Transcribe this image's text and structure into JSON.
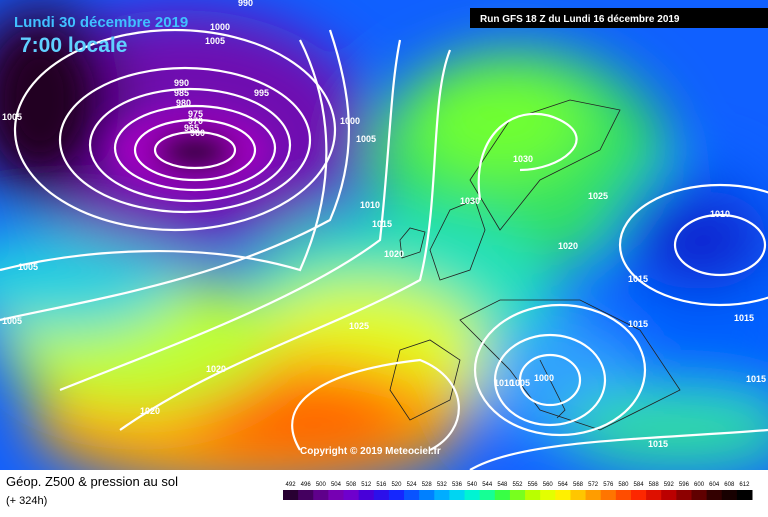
{
  "header": {
    "date": "Lundi 30 décembre 2019",
    "time": "7:00 locale",
    "run": "Run GFS 18 Z du Lundi 16 décembre 2019",
    "copyright": "Copyright © 2019 Meteociel.fr"
  },
  "legend": {
    "title": "Géop. Z500 & pression au sol",
    "lead": "(+ 324h)",
    "scale": [
      492,
      496,
      500,
      504,
      508,
      512,
      516,
      520,
      524,
      528,
      532,
      536,
      540,
      544,
      548,
      552,
      556,
      560,
      564,
      568,
      572,
      576,
      580,
      584,
      588,
      592,
      596,
      600,
      604,
      608,
      612
    ]
  },
  "isobar_labels": [
    990,
    1000,
    1005,
    990,
    985,
    980,
    975,
    970,
    965,
    960,
    995,
    1005,
    1000,
    1005,
    1010,
    1015,
    1020,
    1025,
    1030,
    1030,
    1025,
    1020,
    1010,
    1015,
    1015,
    1015,
    1005,
    1005,
    1020,
    1020,
    1010,
    1005,
    1000,
    1015,
    1015
  ]
}
